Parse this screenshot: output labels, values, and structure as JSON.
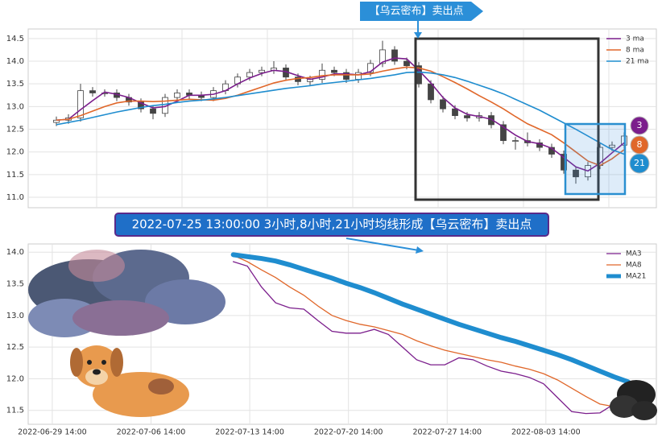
{
  "chart_data": [
    {
      "type": "candlestick",
      "annotation": "【乌云密布】卖出点",
      "badges": [
        "3",
        "8",
        "21"
      ],
      "ylim": [
        10.77,
        14.71
      ],
      "yticks": [
        {
          "value": 11,
          "label": "11.0"
        },
        11.5,
        {
          "value": 12,
          "label": "12.0"
        },
        12.5,
        {
          "value": 13,
          "label": "13.0"
        },
        13.5,
        {
          "value": 14,
          "label": "14.0"
        },
        14.5
      ],
      "grid": true,
      "legend": "upper right",
      "open": [
        12.65,
        12.7,
        12.75,
        13.35,
        13.3,
        13.3,
        13.2,
        13.1,
        12.95,
        12.85,
        13.2,
        13.3,
        13.25,
        13.2,
        13.35,
        13.5,
        13.65,
        13.75,
        13.8,
        13.85,
        13.65,
        13.55,
        13.6,
        13.8,
        13.75,
        13.6,
        13.75,
        13.95,
        14.25,
        14.0,
        13.9,
        13.5,
        13.15,
        12.95,
        12.8,
        12.75,
        12.8,
        12.6,
        12.25,
        12.25,
        12.2,
        12.1,
        11.95,
        11.6,
        11.45,
        11.7,
        12.1,
        12.15
      ],
      "high": [
        12.78,
        12.83,
        13.5,
        13.43,
        13.38,
        13.38,
        13.28,
        13.18,
        13.03,
        13.28,
        13.38,
        13.38,
        13.33,
        13.43,
        13.58,
        13.73,
        13.83,
        13.88,
        14.0,
        13.93,
        13.73,
        13.68,
        13.95,
        13.88,
        13.83,
        13.83,
        14.03,
        14.45,
        14.33,
        14.08,
        13.98,
        13.58,
        13.23,
        13.03,
        12.88,
        12.88,
        12.88,
        12.68,
        12.33,
        12.43,
        12.28,
        12.18,
        12.03,
        11.68,
        11.78,
        12.18,
        12.23,
        12.43
      ],
      "low": [
        12.57,
        12.62,
        12.67,
        13.22,
        13.22,
        13.12,
        13.02,
        12.87,
        12.72,
        12.77,
        13.12,
        13.17,
        13.12,
        13.12,
        13.27,
        13.42,
        13.57,
        13.67,
        13.72,
        13.57,
        13.47,
        13.47,
        13.52,
        13.67,
        13.52,
        13.52,
        13.67,
        13.87,
        13.92,
        13.82,
        13.42,
        13.07,
        12.87,
        12.72,
        12.67,
        12.67,
        12.52,
        12.17,
        12.05,
        12.12,
        12.02,
        11.87,
        11.52,
        11.3,
        11.37,
        11.62,
        12.02,
        12.07
      ],
      "close": [
        12.7,
        12.75,
        13.35,
        13.3,
        13.3,
        13.2,
        13.1,
        12.95,
        12.85,
        13.2,
        13.3,
        13.25,
        13.2,
        13.35,
        13.5,
        13.65,
        13.75,
        13.8,
        13.85,
        13.65,
        13.55,
        13.6,
        13.8,
        13.75,
        13.6,
        13.75,
        13.95,
        14.25,
        14.0,
        13.9,
        13.5,
        13.15,
        12.95,
        12.8,
        12.75,
        12.8,
        12.6,
        12.25,
        12.25,
        12.2,
        12.1,
        11.95,
        11.6,
        11.45,
        11.7,
        12.1,
        12.15,
        12.35
      ],
      "series": [
        {
          "name": "3 ma",
          "color": "#7b1e8c",
          "values": [
            12.7,
            12.72,
            12.93,
            13.13,
            13.32,
            13.27,
            13.2,
            13.08,
            12.97,
            13.0,
            13.12,
            13.25,
            13.25,
            13.27,
            13.35,
            13.5,
            13.63,
            13.73,
            13.8,
            13.77,
            13.68,
            13.6,
            13.65,
            13.72,
            13.72,
            13.7,
            13.77,
            13.98,
            14.07,
            14.05,
            13.8,
            13.52,
            13.2,
            12.97,
            12.83,
            12.78,
            12.72,
            12.55,
            12.37,
            12.23,
            12.18,
            12.08,
            11.88,
            11.67,
            11.58,
            11.75,
            11.98,
            12.2
          ]
        },
        {
          "name": "8 ma",
          "color": "#e0672a",
          "values": [
            12.7,
            12.72,
            12.8,
            12.9,
            13.0,
            13.08,
            13.12,
            13.12,
            13.11,
            13.12,
            13.14,
            13.16,
            13.15,
            13.14,
            13.18,
            13.25,
            13.34,
            13.43,
            13.52,
            13.58,
            13.62,
            13.64,
            13.68,
            13.7,
            13.7,
            13.7,
            13.72,
            13.78,
            13.83,
            13.87,
            13.85,
            13.78,
            13.66,
            13.53,
            13.39,
            13.24,
            13.1,
            12.95,
            12.78,
            12.62,
            12.5,
            12.38,
            12.2,
            12.0,
            11.8,
            11.7,
            11.85,
            12.05
          ]
        },
        {
          "name": "21 ma",
          "color": "#1f8dcf",
          "values": [
            12.6,
            12.65,
            12.7,
            12.76,
            12.82,
            12.88,
            12.93,
            12.98,
            13.02,
            13.05,
            13.09,
            13.12,
            13.14,
            13.17,
            13.2,
            13.24,
            13.28,
            13.32,
            13.36,
            13.4,
            13.43,
            13.46,
            13.5,
            13.53,
            13.56,
            13.59,
            13.62,
            13.66,
            13.7,
            13.75,
            13.76,
            13.74,
            13.7,
            13.64,
            13.56,
            13.47,
            13.38,
            13.28,
            13.16,
            13.04,
            12.92,
            12.78,
            12.64,
            12.5,
            12.35,
            12.2,
            12.05,
            11.95
          ]
        }
      ]
    },
    {
      "type": "line",
      "annotation": "2022-07-25 13:00:00 3小时,8小时,21小时均线形成【乌云密布】卖出点",
      "x": [
        "2022-07-12 10:00",
        "2022-07-13 10:00",
        "2022-07-14 10:00",
        "2022-07-15 10:00",
        "2022-07-16 10:00",
        "2022-07-17 10:00",
        "2022-07-18 10:00",
        "2022-07-19 10:00",
        "2022-07-20 10:00",
        "2022-07-21 10:00",
        "2022-07-22 10:00",
        "2022-07-23 10:00",
        "2022-07-24 10:00",
        "2022-07-25 10:00",
        "2022-07-26 10:00",
        "2022-07-27 10:00",
        "2022-07-28 10:00",
        "2022-07-29 10:00",
        "2022-07-30 10:00",
        "2022-07-31 10:00",
        "2022-08-01 10:00",
        "2022-08-02 10:00",
        "2022-08-03 10:00",
        "2022-08-04 10:00",
        "2022-08-05 10:00",
        "2022-08-06 10:00",
        "2022-08-07 10:00",
        "2022-08-08 10:00",
        "2022-08-09 10:00"
      ],
      "xlim": [
        "2022-06-27 21:00",
        "2022-08-11 10:00"
      ],
      "xticks": [
        "2022-06-29 14:00",
        "2022-07-06 14:00",
        "2022-07-13 14:00",
        "2022-07-20 14:00",
        "2022-07-27 14:00",
        "2022-08-03 14:00"
      ],
      "ylim": [
        11.28,
        14.13
      ],
      "yticks": [
        11.5,
        {
          "value": 12,
          "label": "12.0"
        },
        12.5,
        {
          "value": 13,
          "label": "13.0"
        },
        13.5,
        {
          "value": 14,
          "label": "14.0"
        }
      ],
      "grid": true,
      "legend": "upper right",
      "series": [
        {
          "name": "MA3",
          "color": "#7b1e8c",
          "width": 1.3,
          "values": [
            13.85,
            13.78,
            13.45,
            13.2,
            13.12,
            13.1,
            12.92,
            12.75,
            12.72,
            12.72,
            12.78,
            12.7,
            12.5,
            12.3,
            12.22,
            12.22,
            12.33,
            12.3,
            12.2,
            12.12,
            12.08,
            12.02,
            11.92,
            11.7,
            11.48,
            11.45,
            11.46,
            11.6,
            11.72
          ]
        },
        {
          "name": "MA8",
          "color": "#e0672a",
          "width": 1.3,
          "values": [
            13.95,
            13.85,
            13.72,
            13.6,
            13.45,
            13.32,
            13.15,
            13.0,
            12.92,
            12.86,
            12.82,
            12.76,
            12.7,
            12.6,
            12.52,
            12.45,
            12.4,
            12.35,
            12.3,
            12.26,
            12.2,
            12.15,
            12.08,
            11.98,
            11.85,
            11.72,
            11.6,
            11.56,
            11.62
          ]
        },
        {
          "name": "MA21",
          "color": "#1f8dcf",
          "width": 6,
          "values": [
            13.96,
            13.93,
            13.9,
            13.86,
            13.8,
            13.73,
            13.66,
            13.59,
            13.51,
            13.44,
            13.36,
            13.27,
            13.18,
            13.1,
            13.02,
            12.94,
            12.86,
            12.79,
            12.72,
            12.65,
            12.59,
            12.52,
            12.45,
            12.38,
            12.3,
            12.21,
            12.12,
            12.03,
            11.95
          ]
        }
      ]
    }
  ]
}
